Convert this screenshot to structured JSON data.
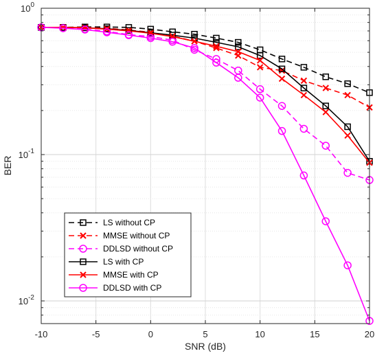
{
  "chart_data": {
    "type": "line",
    "xlabel": "SNR (dB)",
    "ylabel": "BER",
    "xlim": [
      -10,
      20
    ],
    "ylim": [
      0.007,
      1
    ],
    "yscale": "log",
    "grid": true,
    "legend_location": "bottom-left",
    "x_ticks": [
      -10,
      -5,
      0,
      5,
      10,
      15,
      20
    ],
    "y_ticks": [
      {
        "value": 0.01,
        "base": "10",
        "exp": "-2"
      },
      {
        "value": 0.1,
        "base": "10",
        "exp": "-1"
      },
      {
        "value": 1,
        "base": "10",
        "exp": "0"
      }
    ],
    "x": [
      -10,
      -8,
      -6,
      -4,
      -2,
      0,
      2,
      4,
      6,
      8,
      10,
      12,
      14,
      16,
      18,
      20
    ],
    "series": [
      {
        "name": "LS without CP",
        "color": "#000000",
        "dash": true,
        "marker": "square",
        "values": [
          0.74,
          0.74,
          0.745,
          0.745,
          0.74,
          0.72,
          0.69,
          0.665,
          0.625,
          0.585,
          0.52,
          0.45,
          0.395,
          0.34,
          0.305,
          0.265
        ]
      },
      {
        "name": "MMSE without CP",
        "color": "#ff0000",
        "dash": true,
        "marker": "x",
        "values": [
          0.74,
          0.74,
          0.74,
          0.73,
          0.71,
          0.685,
          0.645,
          0.595,
          0.535,
          0.475,
          0.395,
          0.375,
          0.32,
          0.285,
          0.255,
          0.21
        ]
      },
      {
        "name": "DDLSD without CP",
        "color": "#ff00ff",
        "dash": true,
        "marker": "circle",
        "values": [
          0.74,
          0.735,
          0.72,
          0.695,
          0.66,
          0.64,
          0.605,
          0.52,
          0.45,
          0.375,
          0.28,
          0.215,
          0.15,
          0.115,
          0.075,
          0.067
        ]
      },
      {
        "name": "LS with CP",
        "color": "#000000",
        "dash": false,
        "marker": "square",
        "values": [
          0.74,
          0.74,
          0.735,
          0.725,
          0.705,
          0.68,
          0.655,
          0.625,
          0.585,
          0.545,
          0.475,
          0.385,
          0.285,
          0.215,
          0.155,
          0.09
        ]
      },
      {
        "name": "MMSE with CP",
        "color": "#ff0000",
        "dash": false,
        "marker": "x",
        "values": [
          0.74,
          0.74,
          0.735,
          0.72,
          0.7,
          0.675,
          0.64,
          0.595,
          0.55,
          0.505,
          0.44,
          0.33,
          0.255,
          0.195,
          0.135,
          0.088
        ]
      },
      {
        "name": "DDLSD with CP",
        "color": "#ff00ff",
        "dash": false,
        "marker": "circle",
        "values": [
          0.74,
          0.73,
          0.715,
          0.685,
          0.655,
          0.625,
          0.59,
          0.535,
          0.425,
          0.335,
          0.245,
          0.145,
          0.072,
          0.035,
          0.0175,
          0.0073
        ]
      }
    ]
  }
}
